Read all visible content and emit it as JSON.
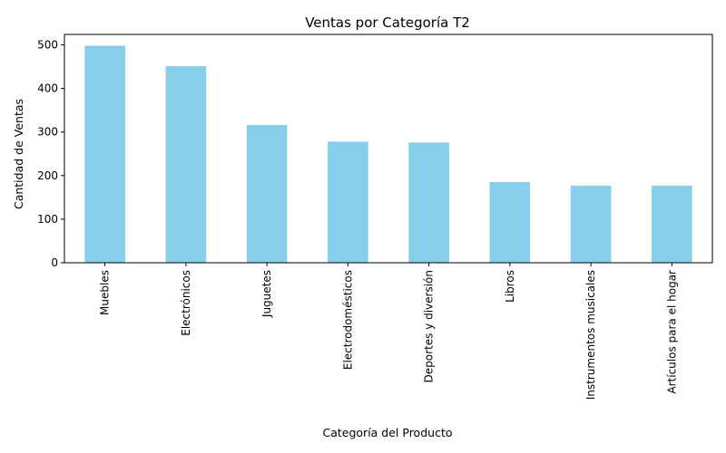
{
  "chart_data": {
    "type": "bar",
    "title": "Ventas por Categoría T2",
    "xlabel": "Categoría del Producto",
    "ylabel": "Cantidad de Ventas",
    "categories": [
      "Muebles",
      "Electrónicos",
      "Juguetes",
      "Electrodomésticos",
      "Deportes y diversión",
      "Libros",
      "Instrumentos musicales",
      "Artículos para el hogar"
    ],
    "values": [
      498,
      451,
      316,
      278,
      276,
      185,
      177,
      177
    ],
    "ylim": [
      0,
      524
    ],
    "yticks": [
      0,
      100,
      200,
      300,
      400,
      500
    ],
    "bar_color": "#87ceeb",
    "grid": false,
    "legend": "none"
  }
}
